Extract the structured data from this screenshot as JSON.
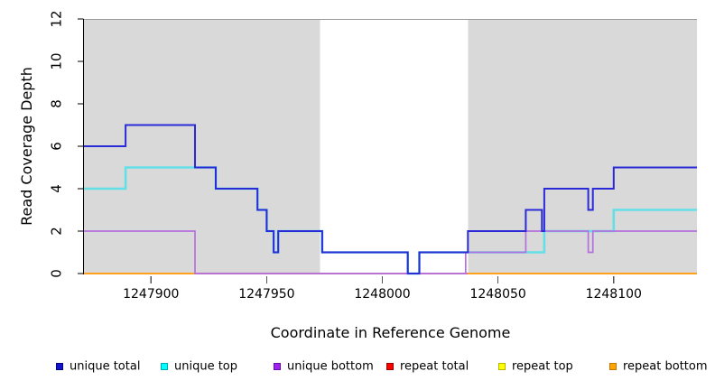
{
  "chart_data": {
    "type": "line",
    "subtype": "step-coverage",
    "title": "",
    "xlabel": "Coordinate in Reference Genome",
    "ylabel": "Read Coverage Depth",
    "xlim": [
      1247871,
      1248136
    ],
    "ylim": [
      0,
      12
    ],
    "xticks": [
      1247900,
      1247950,
      1248000,
      1248050,
      1248100
    ],
    "yticks": [
      0,
      2,
      4,
      6,
      8,
      10,
      12
    ],
    "grid": false,
    "axis_color": "#000000",
    "x_tick_color": "#555555",
    "top_border_color": "#999999",
    "background_regions": [
      {
        "name": "repeat-region-left",
        "x0": 1247871,
        "x1": 1247973,
        "color": "#d9d9d9"
      },
      {
        "name": "unique-region-middle",
        "x0": 1247973,
        "x1": 1248037,
        "color": "#ffffff"
      },
      {
        "name": "repeat-region-right",
        "x0": 1248037,
        "x1": 1248136,
        "color": "#d9d9d9"
      }
    ],
    "series": [
      {
        "name": "repeat top",
        "color": "#F0E005",
        "line_width": 1.6,
        "draw_order": 1,
        "segments": [
          [
            [
              1247871,
              0
            ],
            [
              1248136,
              0
            ]
          ]
        ]
      },
      {
        "name": "repeat total",
        "color": "#D4628C",
        "line_width": 1.8,
        "draw_order": 2,
        "segments": [
          [
            [
              1247871,
              0
            ],
            [
              1248136,
              0
            ]
          ]
        ]
      },
      {
        "name": "repeat bottom",
        "color": "#FFA11C",
        "line_width": 2,
        "draw_order": 3,
        "segments": [
          [
            [
              1247871,
              0
            ],
            [
              1247919,
              0
            ]
          ],
          [
            [
              1248037,
              0
            ],
            [
              1248136,
              0
            ]
          ]
        ]
      },
      {
        "name": "unique top",
        "color": "#63DFE8",
        "line_width": 2.6,
        "draw_order": 4,
        "segments": [
          [
            [
              1247871,
              4
            ],
            [
              1247889,
              5
            ],
            [
              1247928,
              4
            ],
            [
              1247946,
              3
            ],
            [
              1247950,
              2
            ],
            [
              1247953,
              1
            ],
            [
              1247955,
              2
            ],
            [
              1247974,
              1
            ],
            [
              1248011,
              0
            ],
            [
              1248016,
              1
            ],
            [
              1248070,
              2
            ],
            [
              1248100,
              3
            ],
            [
              1248136,
              3
            ]
          ]
        ]
      },
      {
        "name": "unique bottom",
        "color": "#B470DC",
        "line_width": 1.7,
        "draw_order": 5,
        "segments": [
          [
            [
              1247871,
              2
            ],
            [
              1247919,
              0
            ],
            [
              1248036,
              1
            ],
            [
              1248062,
              2
            ],
            [
              1248089,
              1
            ],
            [
              1248091,
              2
            ],
            [
              1248136,
              2
            ]
          ]
        ]
      },
      {
        "name": "unique total",
        "color": "#2A2AD6",
        "line_width": 2,
        "draw_order": 6,
        "segments": [
          [
            [
              1247871,
              6
            ],
            [
              1247889,
              7
            ],
            [
              1247919,
              5
            ],
            [
              1247928,
              4
            ],
            [
              1247946,
              3
            ],
            [
              1247950,
              2
            ],
            [
              1247953,
              1
            ],
            [
              1247955,
              2
            ],
            [
              1247974,
              1
            ],
            [
              1248011,
              0
            ],
            [
              1248016,
              1
            ],
            [
              1248037,
              2
            ],
            [
              1248062,
              3
            ],
            [
              1248069,
              2
            ],
            [
              1248070,
              4
            ],
            [
              1248089,
              3
            ],
            [
              1248091,
              4
            ],
            [
              1248100,
              5
            ],
            [
              1248136,
              5
            ]
          ]
        ]
      }
    ],
    "legend": {
      "entries": [
        {
          "label": "unique total",
          "fill": "#1414CC",
          "border": "#000080"
        },
        {
          "label": "unique top",
          "fill": "#00FFFF",
          "border": "#00A6B5"
        },
        {
          "label": "unique bottom",
          "fill": "#A020F0",
          "border": "#6A0DAD"
        },
        {
          "label": "repeat total",
          "fill": "#FF0000",
          "border": "#990000"
        },
        {
          "label": "repeat top",
          "fill": "#FFFF00",
          "border": "#B8B500"
        },
        {
          "label": "repeat bottom",
          "fill": "#FFA500",
          "border": "#C47600"
        }
      ]
    }
  }
}
